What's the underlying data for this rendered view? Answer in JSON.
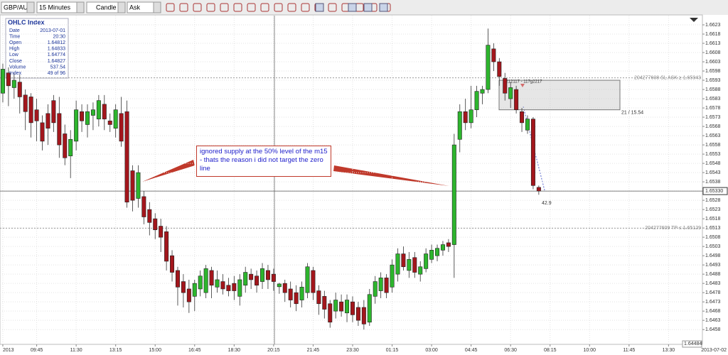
{
  "toolbar": {
    "symbol": "GBP/AUD",
    "timeframe": "15 Minutes",
    "chart_style": "Candle",
    "price_side": "Ask"
  },
  "info_box": {
    "title": "OHLC Index",
    "rows": [
      [
        "Date",
        "2013-07-01"
      ],
      [
        "Time",
        "20:30"
      ],
      [
        "Open",
        1.64812
      ],
      [
        "High",
        1.64833
      ],
      [
        "Low",
        1.64774
      ],
      [
        "Close",
        1.64827
      ],
      [
        "Volume",
        537.54
      ],
      [
        "Index",
        "49 of 96"
      ]
    ]
  },
  "chart_data": {
    "type": "candlestick",
    "open": [
      1.6586,
      1.6597,
      1.6589,
      1.6592,
      1.6585,
      1.6584,
      1.6577,
      1.657,
      1.6575,
      1.6582,
      1.6575,
      1.6564,
      1.6552,
      1.656,
      1.6576,
      1.6569,
      1.6574,
      1.6572,
      1.658,
      1.6571,
      1.6567,
      1.6575,
      1.6576,
      1.6544,
      1.6529,
      1.653,
      1.6523,
      1.6518,
      1.6514,
      1.6511,
      1.6498,
      1.649,
      1.6484,
      1.648,
      1.6476,
      1.648,
      1.6478,
      1.649,
      1.6481,
      1.6484,
      1.6482,
      1.6483,
      1.6476,
      1.6482,
      1.6488,
      1.6487,
      1.6484,
      1.649,
      1.6488,
      1.64812,
      1.6483,
      1.648,
      1.6478,
      1.6474,
      1.6478,
      1.649,
      1.6479,
      1.6476,
      1.6472,
      1.6468,
      1.6473,
      1.6467,
      1.6473,
      1.647,
      1.647,
      1.6462,
      1.6476,
      1.6479,
      1.6486,
      1.6481,
      1.6488,
      1.6499,
      1.649,
      1.6497,
      1.6488,
      1.6491,
      1.6496,
      1.6498,
      1.6501,
      1.6505,
      1.6504,
      1.6561,
      1.6576,
      1.657,
      1.6577,
      1.6586,
      1.6588,
      1.661,
      1.6603,
      1.6594,
      1.6583,
      1.6588,
      1.6576,
      1.6566,
      1.6572,
      1.6535
    ],
    "high": [
      1.6602,
      1.66,
      1.6597,
      1.6596,
      1.6588,
      1.6586,
      1.6583,
      1.6574,
      1.658,
      1.6585,
      1.6584,
      1.6569,
      1.6566,
      1.6582,
      1.658,
      1.658,
      1.6581,
      1.6585,
      1.6585,
      1.6575,
      1.658,
      1.6584,
      1.6582,
      1.6547,
      1.6547,
      1.6533,
      1.6527,
      1.6521,
      1.6518,
      1.6514,
      1.6501,
      1.6492,
      1.6488,
      1.6485,
      1.6485,
      1.649,
      1.6493,
      1.6492,
      1.649,
      1.6488,
      1.6486,
      1.6487,
      1.6488,
      1.6492,
      1.6491,
      1.649,
      1.6494,
      1.6493,
      1.6491,
      1.64833,
      1.6485,
      1.6484,
      1.6482,
      1.6484,
      1.6494,
      1.6492,
      1.6482,
      1.6479,
      1.6474,
      1.6478,
      1.6477,
      1.6477,
      1.6476,
      1.6473,
      1.6474,
      1.648,
      1.6487,
      1.6489,
      1.6488,
      1.6496,
      1.6502,
      1.6503,
      1.65,
      1.65,
      1.6495,
      1.6502,
      1.6504,
      1.6504,
      1.6506,
      1.6507,
      1.6564,
      1.658,
      1.6583,
      1.659,
      1.659,
      1.659,
      1.6621,
      1.6613,
      1.6605,
      1.6597,
      1.6592,
      1.659,
      1.6578,
      1.6574,
      1.6573,
      1.6536
    ],
    "low": [
      1.6581,
      1.6579,
      1.6583,
      1.6575,
      1.6566,
      1.6562,
      1.656,
      1.6555,
      1.6558,
      1.6565,
      1.6551,
      1.6547,
      1.654,
      1.6555,
      1.6565,
      1.6562,
      1.6566,
      1.6568,
      1.6566,
      1.6565,
      1.6562,
      1.6557,
      1.6524,
      1.6522,
      1.6524,
      1.6515,
      1.6509,
      1.6507,
      1.65,
      1.649,
      1.6484,
      1.6471,
      1.647,
      1.6467,
      1.6468,
      1.6476,
      1.6475,
      1.6475,
      1.6478,
      1.6477,
      1.6476,
      1.6474,
      1.6471,
      1.6478,
      1.648,
      1.6478,
      1.648,
      1.648,
      1.6479,
      1.64774,
      1.6473,
      1.647,
      1.6468,
      1.647,
      1.6475,
      1.6474,
      1.6466,
      1.6464,
      1.6459,
      1.6464,
      1.6465,
      1.6462,
      1.6462,
      1.646,
      1.6458,
      1.646,
      1.6472,
      1.6475,
      1.6475,
      1.6478,
      1.6484,
      1.649,
      1.6486,
      1.6486,
      1.6484,
      1.6489,
      1.6494,
      1.6495,
      1.6498,
      1.65,
      1.6486,
      1.6554,
      1.6566,
      1.6567,
      1.6573,
      1.658,
      1.6586,
      1.6598,
      1.659,
      1.6582,
      1.6578,
      1.6575,
      1.6565,
      1.6564,
      1.6534,
      1.6531
    ],
    "close": [
      1.6599,
      1.659,
      1.6593,
      1.6584,
      1.6576,
      1.657,
      1.6571,
      1.656,
      1.6567,
      1.657,
      1.6558,
      1.6551,
      1.6561,
      1.6577,
      1.6571,
      1.6576,
      1.6577,
      1.6582,
      1.6572,
      1.6569,
      1.6577,
      1.656,
      1.6527,
      1.6528,
      1.6543,
      1.6519,
      1.6516,
      1.6512,
      1.6508,
      1.6495,
      1.6489,
      1.6481,
      1.6478,
      1.6473,
      1.6483,
      1.6487,
      1.6491,
      1.6482,
      1.6485,
      1.648,
      1.6479,
      1.6479,
      1.6485,
      1.6489,
      1.6485,
      1.6482,
      1.6491,
      1.6485,
      1.6484,
      1.64827,
      1.6478,
      1.6474,
      1.6472,
      1.6481,
      1.6492,
      1.6478,
      1.6472,
      1.6469,
      1.6462,
      1.6474,
      1.6468,
      1.6474,
      1.6466,
      1.6463,
      1.6461,
      1.6477,
      1.6484,
      1.6486,
      1.6478,
      1.6493,
      1.6499,
      1.6492,
      1.6496,
      1.6489,
      1.6492,
      1.6499,
      1.6501,
      1.6502,
      1.6504,
      1.6503,
      1.6558,
      1.6576,
      1.657,
      1.6577,
      1.6587,
      1.6588,
      1.6612,
      1.6603,
      1.6595,
      1.6586,
      1.6589,
      1.6577,
      1.657,
      1.6572,
      1.6536,
      1.6533
    ],
    "up_color": "#2db52d",
    "down_color": "#a3161c",
    "ylim": [
      1.645,
      1.6628
    ],
    "yticks": [
      1.6458,
      1.6463,
      1.6468,
      1.6473,
      1.6478,
      1.6483,
      1.6488,
      1.6493,
      1.6498,
      1.6503,
      1.6508,
      1.6513,
      1.6518,
      1.6523,
      1.6528,
      1.6533,
      1.6538,
      1.6543,
      1.6548,
      1.6553,
      1.6558,
      1.6563,
      1.6568,
      1.6573,
      1.6578,
      1.6583,
      1.6588,
      1.6593,
      1.6598,
      1.6603,
      1.6608,
      1.6613,
      1.6618,
      1.6623
    ],
    "xlim": [
      -0.5,
      124
    ],
    "xticks": [
      {
        "value": 0,
        "label": "2013"
      },
      {
        "value": 6,
        "label": "09:45"
      },
      {
        "value": 13,
        "label": "11:30"
      },
      {
        "value": 20,
        "label": "13:15"
      },
      {
        "value": 27,
        "label": "15:00"
      },
      {
        "value": 34,
        "label": "16:45"
      },
      {
        "value": 41,
        "label": "18:30"
      },
      {
        "value": 48,
        "label": "20:15"
      },
      {
        "value": 55,
        "label": "21:45"
      },
      {
        "value": 62,
        "label": "23:30"
      },
      {
        "value": 69,
        "label": "01:15"
      },
      {
        "value": 76,
        "label": "03:00"
      },
      {
        "value": 83,
        "label": "04:45"
      },
      {
        "value": 90,
        "label": "06:30"
      },
      {
        "value": 97,
        "label": "08:15"
      },
      {
        "value": 104,
        "label": "10:00"
      },
      {
        "value": 111,
        "label": "11:45"
      },
      {
        "value": 118,
        "label": "13:30"
      }
    ],
    "grid": true,
    "date_end": "2013-07-02",
    "crosshair_price": {
      "value": 1.6533,
      "label": "1.65330"
    },
    "bottom_label": "1.64484",
    "orders": [
      {
        "label": "204277608 SL ASK ≥ 1.65943",
        "price": 1.65943
      },
      {
        "label": "204277609 TP ≤ 1.65129",
        "price": 1.65129
      }
    ],
    "zone": {
      "top": 1.6593,
      "bottom": 1.6577,
      "label": "21 / 15.54"
    },
    "trade_label": "0212117 - 117g2217",
    "distance_label": "42.9",
    "annotation": "ignored supply at the 50% level of the m15 - thats the reason i did not target the zero line"
  }
}
